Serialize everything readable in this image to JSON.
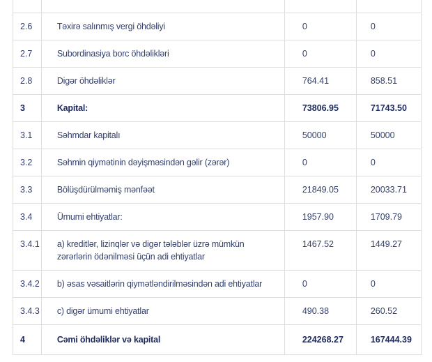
{
  "colors": {
    "text": "#33406F",
    "text_bold": "#1F2A5C",
    "border": "#DEDEDE",
    "background": "#FFFFFF"
  },
  "table": {
    "rows": [
      {
        "code": "2.6",
        "label": "Təxirə salınmış vergi öhdəliyi",
        "value1": "0",
        "value2": "0",
        "bold": false,
        "total": false
      },
      {
        "code": "2.7",
        "label": "Subordinasiya borc öhdəlikləri",
        "value1": "0",
        "value2": "0",
        "bold": false,
        "total": false
      },
      {
        "code": "2.8",
        "label": "Digər öhdəliklər",
        "value1": "764.41",
        "value2": "858.51",
        "bold": false,
        "total": false
      },
      {
        "code": "3",
        "label": "Kapital:",
        "value1": "73806.95",
        "value2": "71743.50",
        "bold": true,
        "total": false
      },
      {
        "code": "3.1",
        "label": "Səhmdar kapitalı",
        "value1": "50000",
        "value2": "50000",
        "bold": false,
        "total": false
      },
      {
        "code": "3.2",
        "label": "Səhmin qiymətinin dəyişməsindən gəlir (zərər)",
        "value1": "0",
        "value2": "0",
        "bold": false,
        "total": false
      },
      {
        "code": "3.3",
        "label": "Bölüşdürülməmiş mənfəət",
        "value1": "21849.05",
        "value2": "20033.71",
        "bold": false,
        "total": false
      },
      {
        "code": "3.4",
        "label": "Ümumi ehtiyatlar:",
        "value1": "1957.90",
        "value2": "1709.79",
        "bold": false,
        "total": false
      },
      {
        "code": "3.4.1",
        "label": "a) kreditlər, lizinqlər və digər tələblər üzrə mümkün\nzərərlərin ödənilməsi üçün adi ehtiyatlar",
        "value1": "1467.52",
        "value2": "1449.27",
        "bold": false,
        "total": false
      },
      {
        "code": "3.4.2",
        "label": "b) əsas vəsaitlərin qiymətləndirilməsindən adi ehtiyatlar",
        "value1": "0",
        "value2": "0",
        "bold": false,
        "total": false
      },
      {
        "code": "3.4.3",
        "label": "c) digər ümumi ehtiyatlar",
        "value1": "490.38",
        "value2": "260.52",
        "bold": false,
        "total": false
      },
      {
        "code": "4",
        "label": "Cəmi öhdəliklər və kapital",
        "value1": "224268.27",
        "value2": "167444.39",
        "bold": true,
        "total": true
      }
    ]
  }
}
